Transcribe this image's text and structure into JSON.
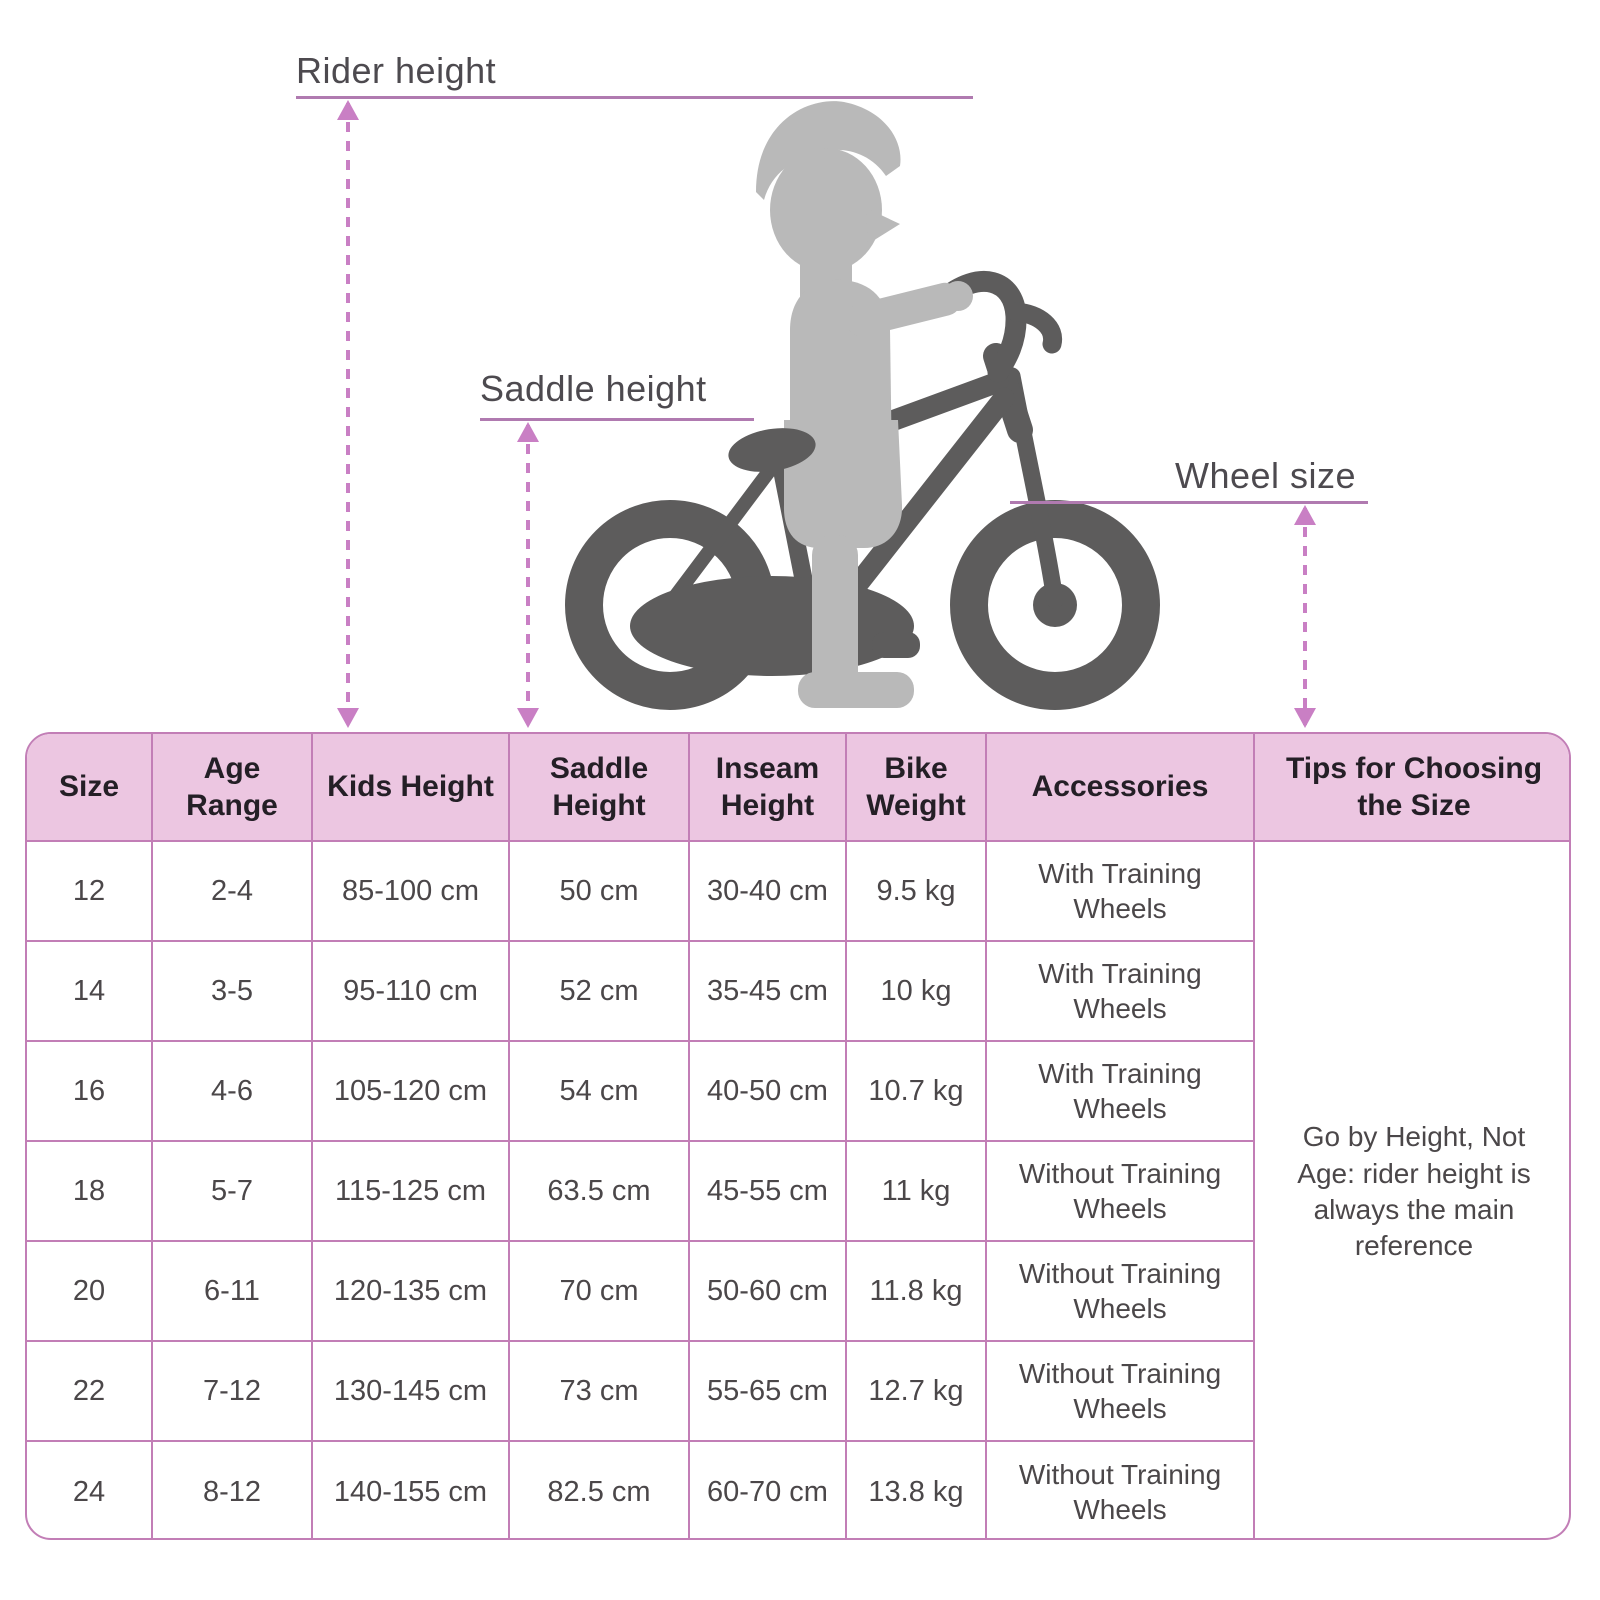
{
  "diagram": {
    "labels": {
      "rider_height": "Rider height",
      "saddle_height": "Saddle height",
      "wheel_size": "Wheel size"
    },
    "colors": {
      "measure_line": "#b07ab0",
      "dashed_arrow": "#c97fc4",
      "child_silhouette": "#b9b9b9",
      "bike_silhouette": "#5d5c5c"
    }
  },
  "table": {
    "colors": {
      "header_bg": "#ecc6e1",
      "border": "#c27eb6"
    },
    "headers": [
      "Size",
      "Age Range",
      "Kids Height",
      "Saddle Height",
      "Inseam Height",
      "Bike Weight",
      "Accessories",
      "Tips for Choosing the Size"
    ],
    "rows": [
      {
        "size": "12",
        "age_range": "2-4",
        "kids_height": "85-100 cm",
        "saddle_height": "50 cm",
        "inseam_height": "30-40 cm",
        "bike_weight": "9.5 kg",
        "accessories": "With Training Wheels"
      },
      {
        "size": "14",
        "age_range": "3-5",
        "kids_height": "95-110 cm",
        "saddle_height": "52 cm",
        "inseam_height": "35-45 cm",
        "bike_weight": "10 kg",
        "accessories": "With Training Wheels"
      },
      {
        "size": "16",
        "age_range": "4-6",
        "kids_height": "105-120 cm",
        "saddle_height": "54 cm",
        "inseam_height": "40-50 cm",
        "bike_weight": "10.7 kg",
        "accessories": "With Training Wheels"
      },
      {
        "size": "18",
        "age_range": "5-7",
        "kids_height": "115-125 cm",
        "saddle_height": "63.5 cm",
        "inseam_height": "45-55 cm",
        "bike_weight": "11 kg",
        "accessories": "Without Training Wheels"
      },
      {
        "size": "20",
        "age_range": "6-11",
        "kids_height": "120-135 cm",
        "saddle_height": "70 cm",
        "inseam_height": "50-60 cm",
        "bike_weight": "11.8 kg",
        "accessories": "Without Training Wheels"
      },
      {
        "size": "22",
        "age_range": "7-12",
        "kids_height": "130-145 cm",
        "saddle_height": "73 cm",
        "inseam_height": "55-65 cm",
        "bike_weight": "12.7 kg",
        "accessories": "Without Training Wheels"
      },
      {
        "size": "24",
        "age_range": "8-12",
        "kids_height": "140-155 cm",
        "saddle_height": "82.5 cm",
        "inseam_height": "60-70 cm",
        "bike_weight": "13.8 kg",
        "accessories": "Without Training Wheels"
      }
    ],
    "tips": "Go by Height, Not Age: rider height is always the main reference"
  }
}
